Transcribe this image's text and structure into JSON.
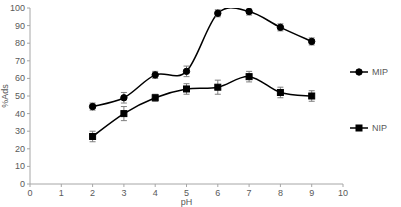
{
  "chart_data": {
    "type": "line",
    "x_label": "pH",
    "y_label": "%Ads",
    "x": [
      2,
      3,
      4,
      5,
      6,
      7,
      8,
      9
    ],
    "series": [
      {
        "name": "MIP",
        "color": "#000000",
        "marker": "circle",
        "line_style": "solid",
        "values": [
          44,
          49,
          62,
          64,
          97,
          98,
          89,
          81
        ],
        "errors": [
          2,
          3,
          2,
          3,
          2,
          2,
          2,
          2
        ]
      },
      {
        "name": "NIP",
        "color": "#000000",
        "marker": "square",
        "line_style": "solid",
        "values": [
          27,
          40,
          49,
          54,
          55,
          61,
          52,
          50
        ],
        "errors": [
          3,
          4,
          2,
          3,
          4,
          3,
          3,
          3
        ]
      }
    ],
    "xlim": [
      0,
      10
    ],
    "xticks": [
      0,
      1,
      2,
      3,
      4,
      5,
      6,
      7,
      8,
      9,
      10
    ],
    "ylim": [
      0,
      100
    ],
    "yticks": [
      0,
      10,
      20,
      30,
      40,
      50,
      60,
      70,
      80,
      90,
      100
    ],
    "grid": false,
    "legend": "right"
  }
}
